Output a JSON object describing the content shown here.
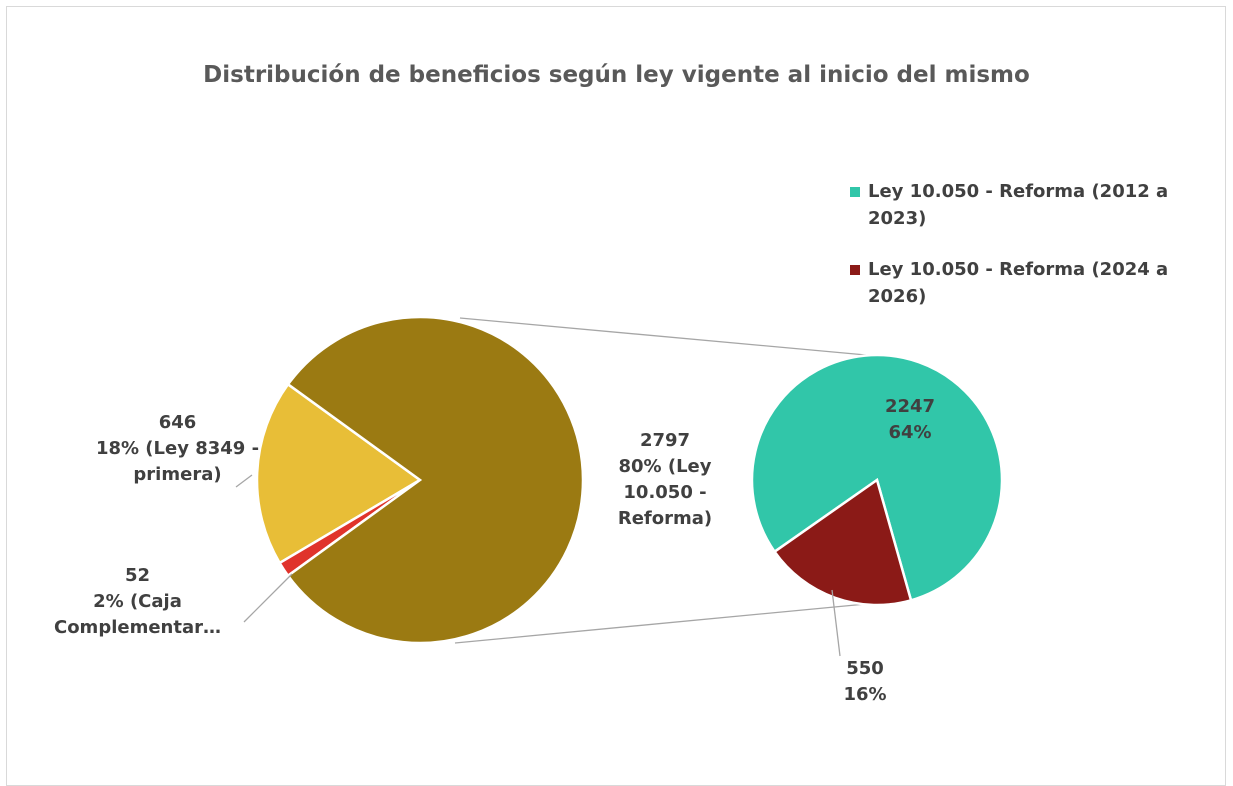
{
  "chart_data": {
    "type": "pie_of_pie",
    "title": "Distribución de beneficios según ley vigente al inicio del mismo",
    "values": [
      646,
      52,
      2797
    ],
    "percent_labels": [
      "18% (Ley 8349 - primera)",
      "2% (Caja Complementar…",
      "80% (Ley 10.050 - Reforma)"
    ],
    "colors": [
      "#e8be37",
      "#e0332b",
      "#9b7a12"
    ],
    "secondary": {
      "categories": [
        "Ley 10.050 - Reforma (2012 a 2023)",
        "Ley 10.050 - Reforma (2024 a 2026)"
      ],
      "values": [
        2247,
        550
      ],
      "percent_labels": [
        "64%",
        "16%"
      ],
      "colors": [
        "#31c6a9",
        "#8b1a17"
      ]
    },
    "legend": "right"
  }
}
